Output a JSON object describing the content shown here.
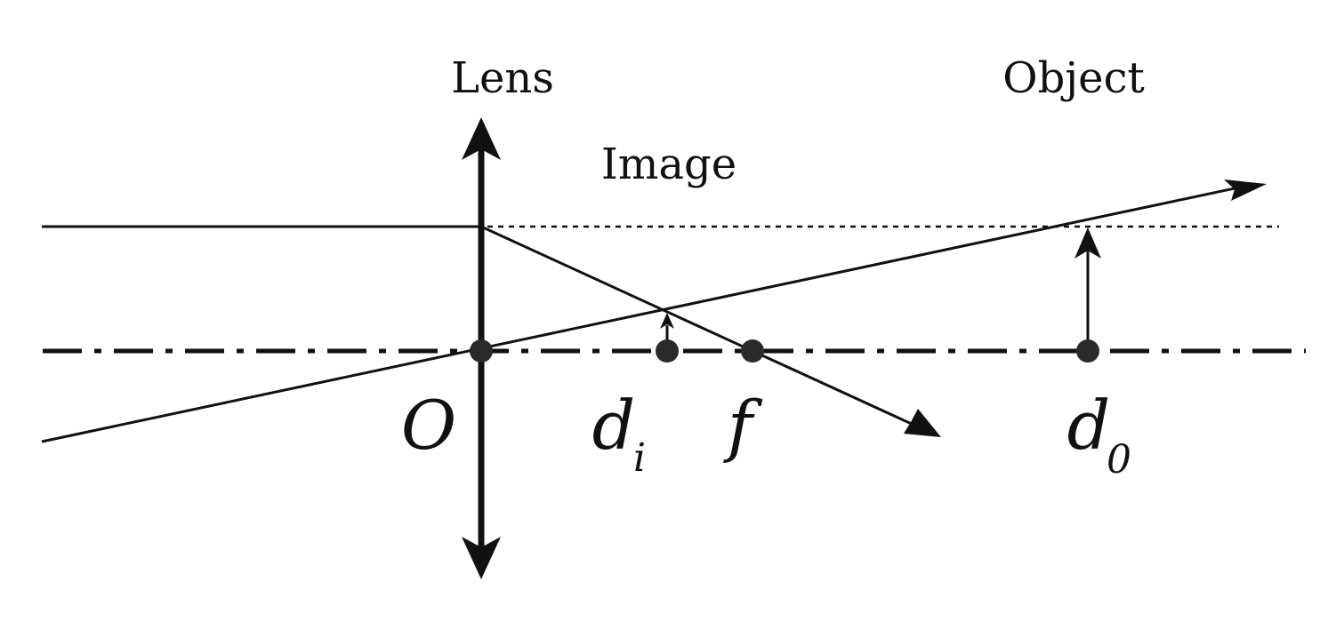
{
  "labels": {
    "lens": "Lens",
    "object": "Object",
    "image": "Image",
    "origin": "O",
    "image_distance": "d",
    "image_distance_sub": "i",
    "focal": "f",
    "object_distance": "d",
    "object_distance_sub": "0"
  },
  "colors": {
    "ink": "#111111",
    "background": "#ffffff"
  }
}
